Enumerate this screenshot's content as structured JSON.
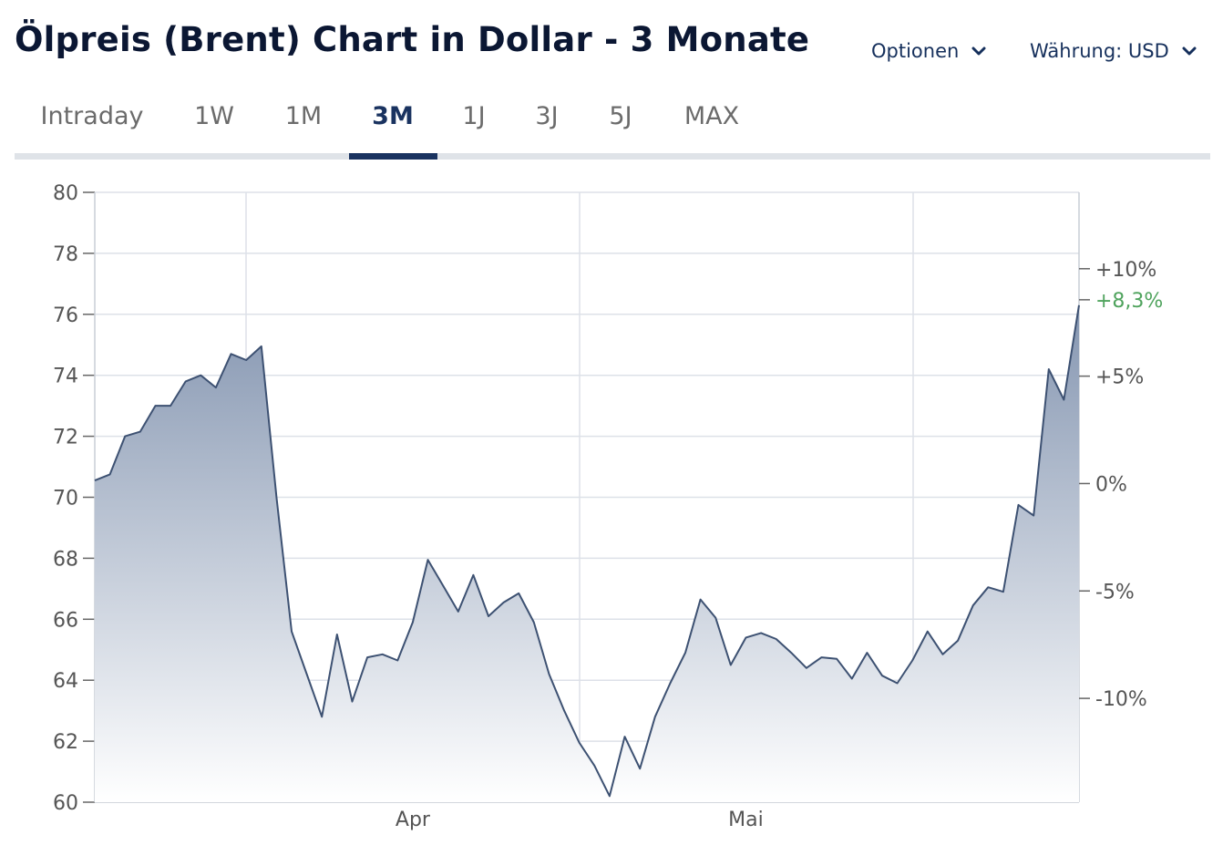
{
  "header": {
    "title": "Ölpreis (Brent) Chart in Dollar - 3 Monate",
    "options_label": "Optionen",
    "currency_label": "Währung: USD"
  },
  "tabs": [
    {
      "label": "Intraday",
      "active": false
    },
    {
      "label": "1W",
      "active": false
    },
    {
      "label": "1M",
      "active": false
    },
    {
      "label": "3M",
      "active": true
    },
    {
      "label": "1J",
      "active": false
    },
    {
      "label": "3J",
      "active": false
    },
    {
      "label": "5J",
      "active": false
    },
    {
      "label": "MAX",
      "active": false
    }
  ],
  "colors": {
    "accent": "#1a3360",
    "line": "#3d5172",
    "fill_top": "#8596b1",
    "fill_bottom": "#ffffff",
    "grid": "#dde1e8",
    "axis_text": "#555555",
    "positive": "#4fa35d"
  },
  "chart_data": {
    "type": "area",
    "x_ticks": [
      "Apr",
      "Mai"
    ],
    "y_ticks": [
      "60",
      "62",
      "64",
      "66",
      "68",
      "70",
      "72",
      "74",
      "76",
      "78",
      "80"
    ],
    "ylim": [
      60,
      80
    ],
    "right_axis": {
      "base_value": 70.45,
      "ticks": [
        {
          "pct": 10,
          "label": "+10%"
        },
        {
          "pct": 5,
          "label": "+5%"
        },
        {
          "pct": 0,
          "label": "0%"
        },
        {
          "pct": -5,
          "label": "-5%"
        },
        {
          "pct": -10,
          "label": "-10%"
        }
      ],
      "current": {
        "pct": 8.3,
        "label": "+8,3%"
      }
    },
    "grid": true,
    "series": [
      {
        "values": [
          70.55,
          70.75,
          72.0,
          72.15,
          73.0,
          73.0,
          73.8,
          74.0,
          73.6,
          74.7,
          74.5,
          74.95,
          70.0,
          65.6,
          64.2,
          62.8,
          65.5,
          63.3,
          64.75,
          64.85,
          64.65,
          65.9,
          67.95,
          67.1,
          66.25,
          67.45,
          66.1,
          66.55,
          66.85,
          65.9,
          64.2,
          63.0,
          61.95,
          61.2,
          60.2,
          62.15,
          61.1,
          62.8,
          63.9,
          64.9,
          66.65,
          66.05,
          64.5,
          65.4,
          65.55,
          65.35,
          64.9,
          64.4,
          64.75,
          64.7,
          64.05,
          64.9,
          64.15,
          63.9,
          64.65,
          65.6,
          64.85,
          65.3,
          66.45,
          67.05,
          66.9,
          69.75,
          69.4,
          74.2,
          73.2,
          76.3
        ],
        "x_tick_positions": {
          "Apr": 21,
          "Mai": 43
        }
      }
    ]
  }
}
